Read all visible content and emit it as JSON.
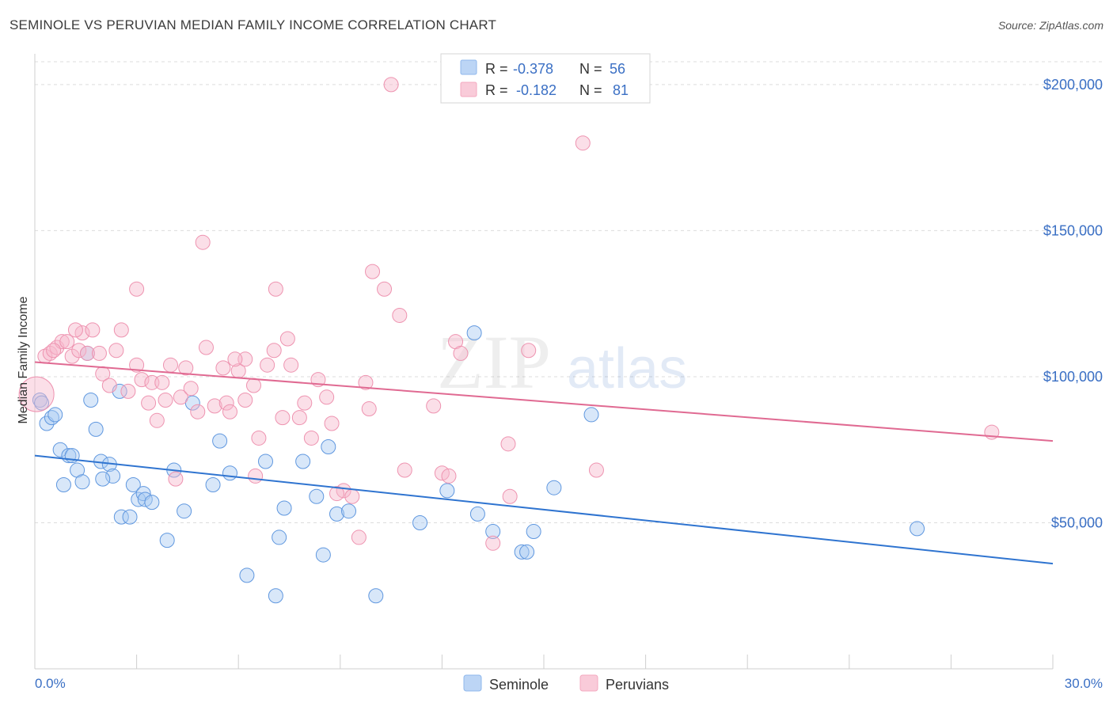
{
  "title": "SEMINOLE VS PERUVIAN MEDIAN FAMILY INCOME CORRELATION CHART",
  "source": "Source: ZipAtlas.com",
  "watermark": "ZIPatlas",
  "legend": {
    "rows": [
      {
        "r_label": "R =",
        "r_value": "-0.378",
        "n_label": "N =",
        "n_value": "56",
        "color": "#8fb8ec"
      },
      {
        "r_label": "R =",
        "r_value": "-0.182",
        "n_label": "N =",
        "n_value": "81",
        "color": "#f4a9c0"
      }
    ]
  },
  "chart_data": {
    "type": "scatter",
    "title": "SEMINOLE VS PERUVIAN MEDIAN FAMILY INCOME CORRELATION CHART",
    "xlabel": "",
    "ylabel": "Median Family Income",
    "xlim": [
      0,
      30
    ],
    "ylim": [
      0,
      210000
    ],
    "x_tick_labels": [
      "0.0%",
      "30.0%"
    ],
    "y_tick_labels": [
      "$50,000",
      "$100,000",
      "$150,000",
      "$200,000"
    ],
    "y_ticks": [
      50000,
      100000,
      150000,
      200000
    ],
    "grid": true,
    "legend_position": "top-center",
    "series": [
      {
        "name": "Seminole",
        "color": "#6aa3e8",
        "line_color": "#2f74d0",
        "trend": {
          "x": [
            0,
            30
          ],
          "y": [
            73000,
            36000
          ]
        },
        "points": [
          [
            0.15,
            92000
          ],
          [
            0.2,
            91000
          ],
          [
            0.35,
            84000
          ],
          [
            0.5,
            86000
          ],
          [
            0.6,
            87000
          ],
          [
            0.75,
            75000
          ],
          [
            0.85,
            63000
          ],
          [
            1.0,
            73000
          ],
          [
            1.1,
            73000
          ],
          [
            1.25,
            68000
          ],
          [
            1.4,
            64000
          ],
          [
            1.55,
            108000
          ],
          [
            1.65,
            92000
          ],
          [
            1.8,
            82000
          ],
          [
            1.95,
            71000
          ],
          [
            2.2,
            70000
          ],
          [
            2.3,
            66000
          ],
          [
            2.0,
            65000
          ],
          [
            2.55,
            52000
          ],
          [
            2.8,
            52000
          ],
          [
            2.9,
            63000
          ],
          [
            3.05,
            58000
          ],
          [
            3.2,
            60000
          ],
          [
            3.25,
            58000
          ],
          [
            3.45,
            57000
          ],
          [
            3.9,
            44000
          ],
          [
            4.1,
            68000
          ],
          [
            4.4,
            54000
          ],
          [
            4.65,
            91000
          ],
          [
            5.25,
            63000
          ],
          [
            5.45,
            78000
          ],
          [
            5.75,
            67000
          ],
          [
            6.25,
            32000
          ],
          [
            6.8,
            71000
          ],
          [
            7.1,
            25000
          ],
          [
            7.2,
            45000
          ],
          [
            7.35,
            55000
          ],
          [
            7.9,
            71000
          ],
          [
            8.3,
            59000
          ],
          [
            8.5,
            39000
          ],
          [
            8.65,
            76000
          ],
          [
            8.9,
            53000
          ],
          [
            9.25,
            54000
          ],
          [
            10.05,
            25000
          ],
          [
            11.35,
            50000
          ],
          [
            12.15,
            61000
          ],
          [
            12.95,
            115000
          ],
          [
            13.05,
            53000
          ],
          [
            13.5,
            47000
          ],
          [
            14.35,
            40000
          ],
          [
            14.5,
            40000
          ],
          [
            14.7,
            47000
          ],
          [
            15.3,
            62000
          ],
          [
            16.4,
            87000
          ],
          [
            26.0,
            48000
          ],
          [
            2.5,
            95000
          ]
        ]
      },
      {
        "name": "Peruvians",
        "color": "#f4a9c0",
        "line_color": "#e06a92",
        "trend": {
          "x": [
            0,
            30
          ],
          "y": [
            105000,
            78000
          ]
        },
        "points": [
          [
            0.05,
            94000
          ],
          [
            0.3,
            107000
          ],
          [
            0.45,
            108000
          ],
          [
            0.65,
            110000
          ],
          [
            0.8,
            112000
          ],
          [
            0.95,
            112000
          ],
          [
            1.1,
            107000
          ],
          [
            1.3,
            109000
          ],
          [
            1.4,
            115000
          ],
          [
            1.55,
            108000
          ],
          [
            1.7,
            116000
          ],
          [
            1.9,
            108000
          ],
          [
            2.0,
            101000
          ],
          [
            2.2,
            97000
          ],
          [
            2.4,
            109000
          ],
          [
            2.55,
            116000
          ],
          [
            2.75,
            95000
          ],
          [
            3.0,
            104000
          ],
          [
            3.15,
            99000
          ],
          [
            3.35,
            91000
          ],
          [
            3.45,
            98000
          ],
          [
            3.6,
            85000
          ],
          [
            3.75,
            98000
          ],
          [
            3.85,
            92000
          ],
          [
            4.0,
            104000
          ],
          [
            4.15,
            65000
          ],
          [
            4.3,
            93000
          ],
          [
            4.45,
            103000
          ],
          [
            4.6,
            96000
          ],
          [
            4.8,
            88000
          ],
          [
            4.95,
            146000
          ],
          [
            5.05,
            110000
          ],
          [
            5.3,
            90000
          ],
          [
            5.55,
            103000
          ],
          [
            5.65,
            91000
          ],
          [
            5.75,
            88000
          ],
          [
            6.0,
            102000
          ],
          [
            6.2,
            106000
          ],
          [
            6.45,
            97000
          ],
          [
            6.5,
            66000
          ],
          [
            6.6,
            79000
          ],
          [
            6.85,
            104000
          ],
          [
            7.05,
            109000
          ],
          [
            7.1,
            130000
          ],
          [
            7.3,
            86000
          ],
          [
            7.45,
            113000
          ],
          [
            7.55,
            104000
          ],
          [
            7.8,
            86000
          ],
          [
            7.95,
            91000
          ],
          [
            8.15,
            79000
          ],
          [
            8.35,
            99000
          ],
          [
            8.6,
            93000
          ],
          [
            8.75,
            84000
          ],
          [
            9.1,
            61000
          ],
          [
            9.35,
            59000
          ],
          [
            9.55,
            45000
          ],
          [
            9.75,
            98000
          ],
          [
            9.85,
            89000
          ],
          [
            9.95,
            136000
          ],
          [
            10.3,
            130000
          ],
          [
            10.75,
            121000
          ],
          [
            10.9,
            68000
          ],
          [
            11.75,
            90000
          ],
          [
            12.0,
            67000
          ],
          [
            12.2,
            66000
          ],
          [
            12.4,
            112000
          ],
          [
            12.55,
            108000
          ],
          [
            13.5,
            43000
          ],
          [
            13.95,
            77000
          ],
          [
            14.0,
            59000
          ],
          [
            14.55,
            109000
          ],
          [
            16.15,
            180000
          ],
          [
            16.55,
            68000
          ],
          [
            10.5,
            200000
          ],
          [
            28.2,
            81000
          ],
          [
            3.0,
            130000
          ],
          [
            1.2,
            116000
          ],
          [
            5.9,
            106000
          ],
          [
            8.9,
            60000
          ],
          [
            0.55,
            109000
          ],
          [
            6.2,
            92000
          ]
        ]
      }
    ]
  }
}
